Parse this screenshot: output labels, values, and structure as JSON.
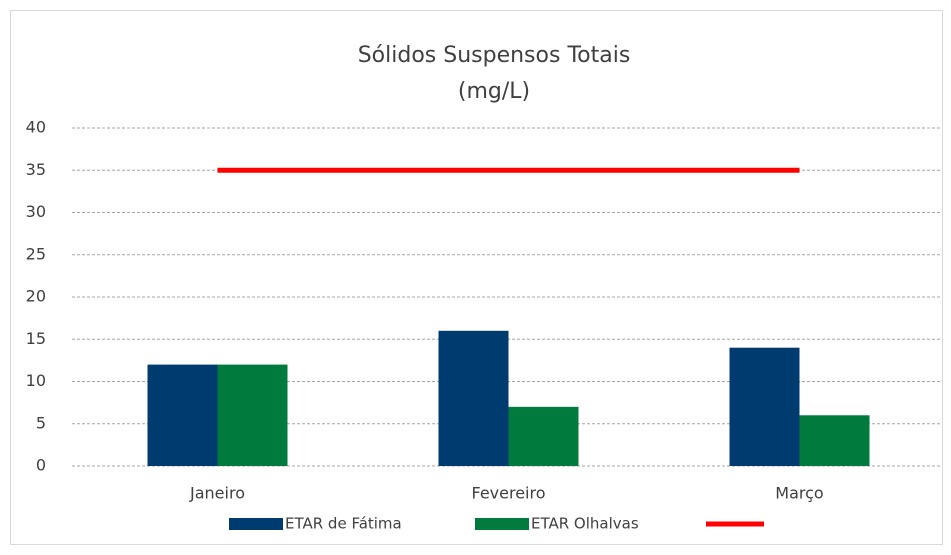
{
  "chart_data": {
    "type": "bar",
    "title": [
      "Sólidos Suspensos Totais",
      "(mg/L)"
    ],
    "categories": [
      "Janeiro",
      "Fevereiro",
      "Março"
    ],
    "series": [
      {
        "name": "ETAR de Fátima",
        "color": "#003b6f",
        "values": [
          12,
          16,
          14
        ]
      },
      {
        "name": "ETAR Olhalvas",
        "color": "#007a3d",
        "values": [
          12,
          7,
          6
        ]
      },
      {
        "type": "line",
        "color": "#ff0000",
        "values": [
          35,
          35,
          35
        ]
      }
    ],
    "ylim": [
      0,
      40
    ],
    "yticks": [
      0,
      5,
      10,
      15,
      20,
      25,
      30,
      35,
      40
    ],
    "grid": true,
    "legend": "bottom"
  }
}
